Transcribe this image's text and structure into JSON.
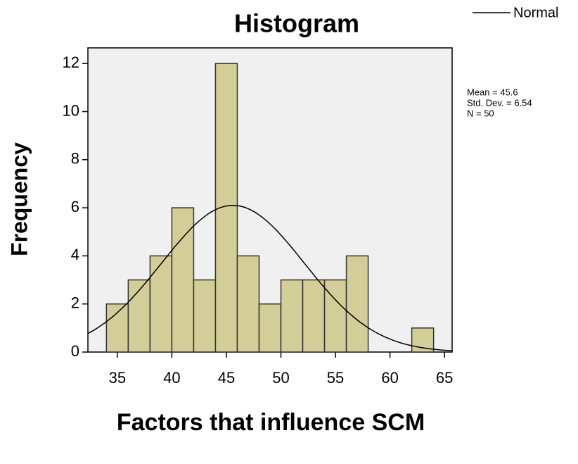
{
  "chart_data": {
    "type": "histogram",
    "title": "Histogram",
    "x_label": "Factors that influence SCM",
    "y_label": "Frequency",
    "bins": [
      34,
      36,
      38,
      40,
      42,
      44,
      46,
      48,
      50,
      52,
      54,
      56,
      58,
      60,
      62,
      64
    ],
    "values": [
      2,
      3,
      4,
      6,
      3,
      12,
      4,
      2,
      3,
      3,
      3,
      4,
      0,
      0,
      1
    ],
    "color": "#d3ce97",
    "xlim": [
      32.3,
      65.7
    ],
    "xticks": [
      35,
      40,
      45,
      50,
      55,
      60,
      65
    ],
    "ylim": [
      0,
      12.65
    ],
    "yticks": [
      0,
      2,
      4,
      6,
      8,
      10,
      12
    ],
    "normal": {
      "name": "Normal",
      "mean": 45.6,
      "std_dev": 6.54,
      "n": 50,
      "labels": [
        "Mean = 45.6",
        "Std. Dev. = 6.54",
        "N = 50"
      ]
    }
  }
}
